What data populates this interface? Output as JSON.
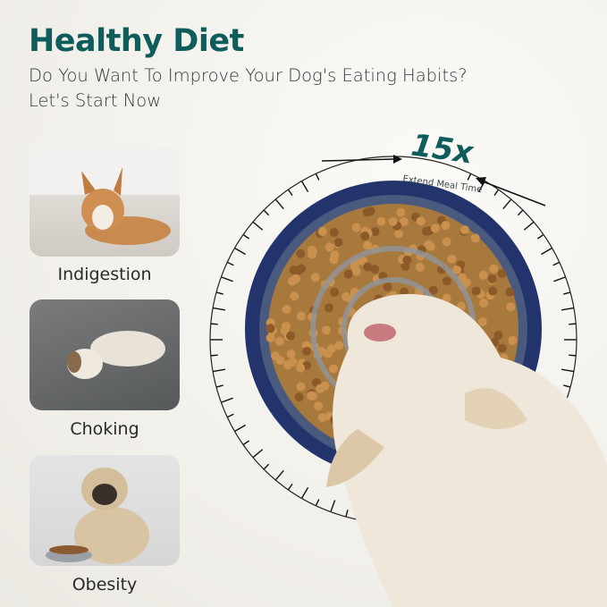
{
  "header": {
    "title": "Healthy Diet",
    "subtitle_line1": "Do You Want To Improve Your Dog's Eating Habits?",
    "subtitle_line2": "Let's Start Now"
  },
  "problems": [
    {
      "label": "Indigestion",
      "image": "corgi-lying-on-floor"
    },
    {
      "label": "Choking",
      "image": "puppy-lying-on-pavement"
    },
    {
      "label": "Obesity",
      "image": "pug-with-food-bowl"
    }
  ],
  "feature": {
    "multiplier": "15x",
    "caption": "Extend Meal Time"
  },
  "colors": {
    "accent": "#0f5d5b",
    "bowl": "#2b3f7a",
    "kibble": "#b07a3a"
  }
}
